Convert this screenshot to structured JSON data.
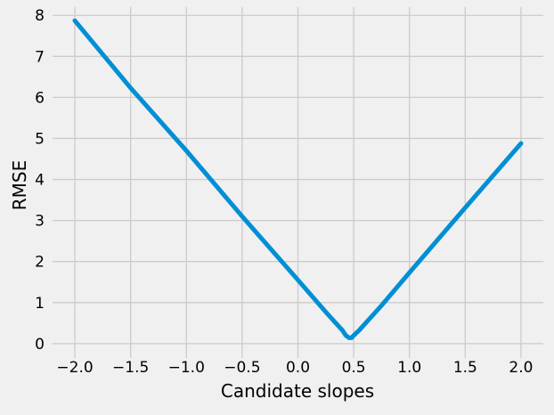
{
  "chart_data": {
    "type": "line",
    "title": "",
    "xlabel": "Candidate slopes",
    "ylabel": "RMSE",
    "xlim": [
      -2.2,
      2.2
    ],
    "ylim": [
      -0.35,
      8.2
    ],
    "grid": true,
    "x_ticks": [
      -2.0,
      -1.5,
      -1.0,
      -0.5,
      0.0,
      0.5,
      1.0,
      1.5,
      2.0
    ],
    "x_tick_labels": [
      "−2.0",
      "−1.5",
      "−1.0",
      "−0.5",
      "0.0",
      "0.5",
      "1.0",
      "1.5",
      "2.0"
    ],
    "y_ticks": [
      0,
      1,
      2,
      3,
      4,
      5,
      6,
      7,
      8
    ],
    "y_tick_labels": [
      "0",
      "1",
      "2",
      "3",
      "4",
      "5",
      "6",
      "7",
      "8"
    ],
    "series": [
      {
        "color": "#008fd5",
        "x": [
          -2.0,
          -1.5,
          -1.0,
          -0.5,
          0.0,
          0.25,
          0.35,
          0.4,
          0.43,
          0.46,
          0.48,
          0.5,
          0.55,
          0.6,
          0.75,
          1.0,
          1.5,
          2.0
        ],
        "y": [
          7.87,
          6.23,
          4.7,
          3.1,
          1.55,
          0.77,
          0.47,
          0.32,
          0.2,
          0.14,
          0.14,
          0.2,
          0.33,
          0.48,
          0.93,
          1.73,
          3.31,
          4.88
        ]
      }
    ],
    "colors": {
      "background": "#f0f0f0",
      "grid": "#cbcbcb",
      "line": "#008fd5"
    }
  }
}
